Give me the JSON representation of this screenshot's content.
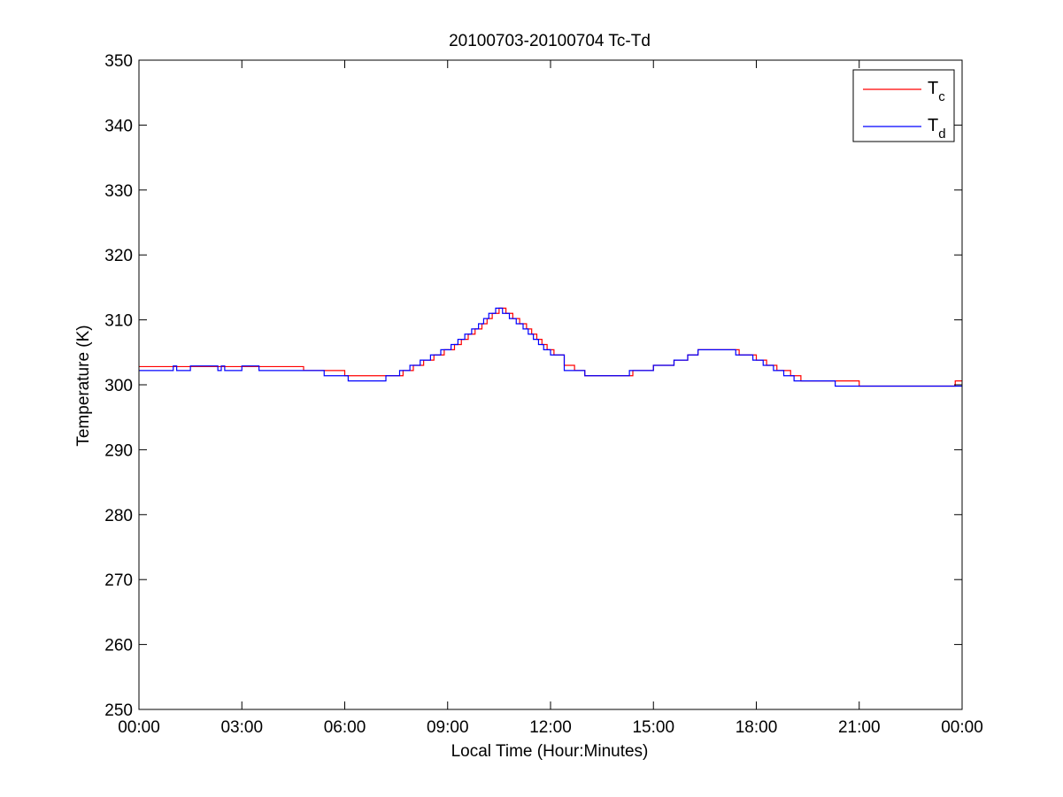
{
  "chart_data": {
    "type": "line",
    "title": "20100703-20100704 Tc-Td",
    "xlabel": "Local Time (Hour:Minutes)",
    "ylabel": "Temperature (K)",
    "xlim": [
      0,
      24
    ],
    "ylim": [
      250,
      350
    ],
    "x_tick_values": [
      0,
      3,
      6,
      9,
      12,
      15,
      18,
      21,
      24
    ],
    "x_tick_labels": [
      "00:00",
      "03:00",
      "06:00",
      "09:00",
      "12:00",
      "15:00",
      "18:00",
      "21:00",
      "00:00"
    ],
    "y_tick_values": [
      250,
      260,
      270,
      280,
      290,
      300,
      310,
      320,
      330,
      340,
      350
    ],
    "y_tick_labels": [
      "250",
      "260",
      "270",
      "280",
      "290",
      "300",
      "310",
      "320",
      "330",
      "340",
      "350"
    ],
    "grid": false,
    "legend_position": "top-right",
    "series": [
      {
        "name": "T",
        "subscript": "c",
        "color": "#ff0000",
        "step": true,
        "x": [
          0.0,
          0.5,
          1.0,
          2.3,
          3.6,
          4.8,
          5.5,
          6.0,
          7.3,
          7.7,
          8.0,
          8.3,
          8.6,
          8.9,
          9.2,
          9.4,
          9.6,
          9.8,
          10.0,
          10.15,
          10.3,
          10.5,
          10.7,
          10.9,
          11.1,
          11.3,
          11.45,
          11.6,
          11.75,
          11.9,
          12.1,
          12.4,
          12.7,
          13.0,
          14.0,
          14.4,
          15.0,
          15.6,
          16.0,
          16.3,
          16.6,
          17.0,
          17.5,
          18.0,
          18.3,
          18.6,
          19.0,
          19.3,
          19.6,
          20.0,
          21.0,
          23.8,
          24.0
        ],
        "y": [
          302.8,
          302.8,
          302.8,
          302.8,
          302.8,
          302.2,
          302.2,
          301.4,
          301.4,
          302.2,
          303.0,
          303.8,
          304.6,
          305.4,
          306.2,
          307.0,
          307.8,
          308.6,
          309.4,
          310.2,
          311.0,
          311.8,
          311.0,
          310.2,
          309.4,
          308.6,
          307.8,
          307.0,
          306.2,
          305.4,
          304.6,
          303.0,
          302.2,
          301.4,
          301.4,
          302.2,
          303.0,
          303.8,
          304.6,
          305.4,
          305.4,
          305.4,
          304.6,
          303.8,
          303.0,
          302.2,
          301.4,
          300.6,
          300.6,
          300.6,
          299.8,
          300.6,
          300.6
        ]
      },
      {
        "name": "T",
        "subscript": "d",
        "color": "#0000ff",
        "step": true,
        "x": [
          0.0,
          0.5,
          1.0,
          1.1,
          1.5,
          2.3,
          2.4,
          2.5,
          2.8,
          3.0,
          3.5,
          4.0,
          5.4,
          6.1,
          7.2,
          7.6,
          7.9,
          8.2,
          8.5,
          8.8,
          9.1,
          9.3,
          9.5,
          9.7,
          9.9,
          10.05,
          10.2,
          10.4,
          10.6,
          10.8,
          11.0,
          11.2,
          11.35,
          11.5,
          11.65,
          11.8,
          12.0,
          12.4,
          13.0,
          14.0,
          14.3,
          15.0,
          15.6,
          16.0,
          16.3,
          16.6,
          17.0,
          17.4,
          17.9,
          18.2,
          18.5,
          18.8,
          19.1,
          19.4,
          20.0,
          20.3,
          21.0,
          24.0
        ],
        "y": [
          302.2,
          302.2,
          302.9,
          302.2,
          302.9,
          302.2,
          302.9,
          302.2,
          302.2,
          302.9,
          302.2,
          302.2,
          301.4,
          300.6,
          301.4,
          302.2,
          303.0,
          303.8,
          304.6,
          305.4,
          306.2,
          307.0,
          307.8,
          308.6,
          309.4,
          310.2,
          311.0,
          311.8,
          311.0,
          310.2,
          309.4,
          308.6,
          307.8,
          307.0,
          306.2,
          305.4,
          304.6,
          302.2,
          301.4,
          301.4,
          302.2,
          303.0,
          303.8,
          304.6,
          305.4,
          305.4,
          305.4,
          304.6,
          303.8,
          303.0,
          302.2,
          301.4,
          300.6,
          300.6,
          300.6,
          299.8,
          299.8,
          299.8
        ]
      }
    ]
  }
}
